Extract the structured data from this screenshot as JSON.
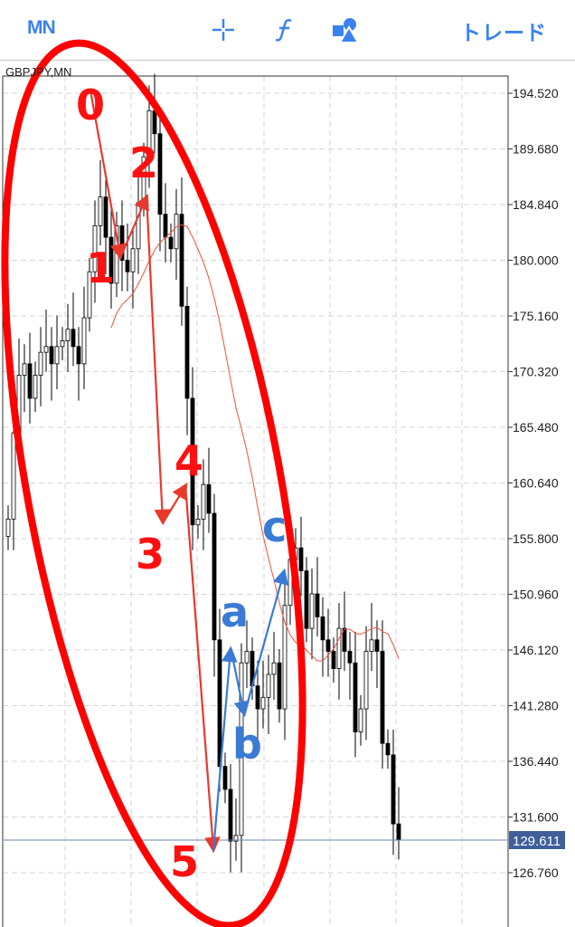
{
  "toolbar": {
    "timeframe": "MN",
    "crosshair_icon": "crosshair-icon",
    "indicators_icon": "function-icon",
    "objects_icon": "shapes-icon",
    "trade_label": "トレード"
  },
  "chart": {
    "symbol_label": "GBPJPY,MN",
    "price_axis": [
      "194.520",
      "189.680",
      "184.840",
      "180.000",
      "175.160",
      "170.320",
      "165.480",
      "160.640",
      "155.800",
      "150.960",
      "146.120",
      "141.280",
      "136.440",
      "131.600",
      "126.760"
    ],
    "current_price": "129.611",
    "colors": {
      "bull": "#ffffff",
      "bear": "#000000",
      "ma": "#f0503c",
      "price_line": "#6b86b0",
      "price_tag": "#3d5f9a",
      "wave_red": "#e8392c",
      "wave_blue": "#3a7bd5",
      "ellipse": "#ff0000"
    },
    "closes": [
      157.5,
      165,
      170,
      171,
      168,
      170,
      172,
      172.5,
      171,
      172.5,
      173,
      174,
      172.5,
      171,
      175,
      179,
      183,
      185.5,
      182,
      178,
      183,
      180,
      179,
      181,
      185,
      189,
      193,
      191,
      184,
      182,
      181,
      184,
      176,
      168,
      157,
      157.5,
      160.5,
      158,
      147,
      136,
      134,
      129.5,
      130,
      145,
      146,
      143,
      141,
      142,
      144,
      145,
      141,
      150,
      154,
      155,
      153,
      148,
      151,
      149,
      147,
      146,
      144.5,
      148,
      146,
      145,
      139,
      141,
      146,
      147,
      146,
      138,
      137,
      131,
      129.6
    ]
  },
  "annotations": {
    "impulse_labels": [
      "0",
      "1",
      "2",
      "3",
      "4",
      "5"
    ],
    "correction_labels": [
      "a",
      "b",
      "c"
    ]
  }
}
